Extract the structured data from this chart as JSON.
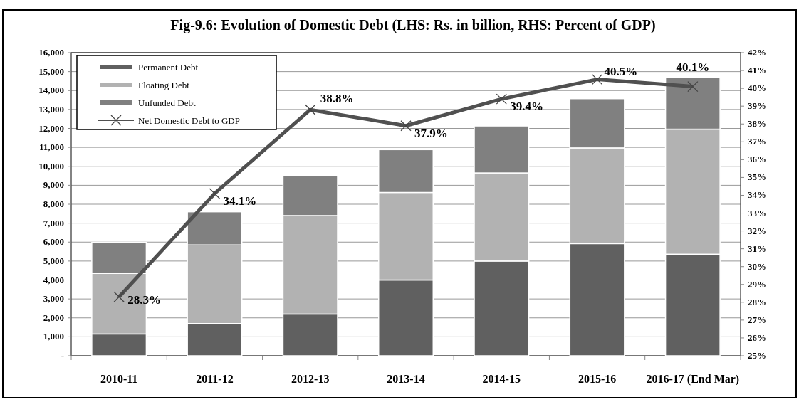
{
  "chart_data": {
    "type": "bar",
    "title": "Fig-9.6: Evolution of Domestic Debt (LHS: Rs. in billion, RHS: Percent of GDP)",
    "categories": [
      "2010-11",
      "2011-12",
      "2012-13",
      "2013-14",
      "2014-15",
      "2015-16",
      "2016-17 (End Mar)"
    ],
    "stacked": true,
    "series": [
      {
        "name": "Permanent Debt",
        "color": "#606060",
        "values": [
          1150,
          1700,
          2200,
          4000,
          5000,
          5920,
          5360
        ]
      },
      {
        "name": "Floating Debt",
        "color": "#b2b2b2",
        "values": [
          3200,
          4150,
          5200,
          4620,
          4650,
          5050,
          6600
        ]
      },
      {
        "name": "Unfunded Debt",
        "color": "#808080",
        "values": [
          1630,
          1750,
          2100,
          2260,
          2480,
          2600,
          2720
        ]
      },
      {
        "name": "Net Domestic Debt to GDP",
        "type": "line",
        "axis": "y2",
        "color": "#505050",
        "marker": "cross",
        "values": [
          28.3,
          34.1,
          38.8,
          37.9,
          39.4,
          40.5,
          40.1
        ],
        "value_labels": [
          "28.3%",
          "34.1%",
          "38.8%",
          "37.9%",
          "39.4%",
          "40.5%",
          "40.1%"
        ]
      }
    ],
    "ylim": [
      0,
      16000
    ],
    "yticks": [
      {
        "value": 0,
        "label": "-"
      },
      {
        "value": 1000,
        "label": "1,000"
      },
      {
        "value": 2000,
        "label": "2,000"
      },
      {
        "value": 3000,
        "label": "3,000"
      },
      {
        "value": 4000,
        "label": "4,000"
      },
      {
        "value": 5000,
        "label": "5,000"
      },
      {
        "value": 6000,
        "label": "6,000"
      },
      {
        "value": 7000,
        "label": "7,000"
      },
      {
        "value": 8000,
        "label": "8,000"
      },
      {
        "value": 9000,
        "label": "9,000"
      },
      {
        "value": 10000,
        "label": "10,000"
      },
      {
        "value": 11000,
        "label": "11,000"
      },
      {
        "value": 12000,
        "label": "12,000"
      },
      {
        "value": 13000,
        "label": "13,000"
      },
      {
        "value": 14000,
        "label": "14,000"
      },
      {
        "value": 15000,
        "label": "15,000"
      },
      {
        "value": 16000,
        "label": "16,000"
      }
    ],
    "y2lim": [
      25,
      42
    ],
    "y2ticks": [
      {
        "value": 25,
        "label": "25%"
      },
      {
        "value": 26,
        "label": "26%"
      },
      {
        "value": 27,
        "label": "27%"
      },
      {
        "value": 28,
        "label": "28%"
      },
      {
        "value": 29,
        "label": "29%"
      },
      {
        "value": 30,
        "label": "30%"
      },
      {
        "value": 31,
        "label": "31%"
      },
      {
        "value": 32,
        "label": "32%"
      },
      {
        "value": 33,
        "label": "33%"
      },
      {
        "value": 34,
        "label": "34%"
      },
      {
        "value": 35,
        "label": "35%"
      },
      {
        "value": 36,
        "label": "36%"
      },
      {
        "value": 37,
        "label": "37%"
      },
      {
        "value": 38,
        "label": "38%"
      },
      {
        "value": 39,
        "label": "39%"
      },
      {
        "value": 40,
        "label": "40%"
      },
      {
        "value": 41,
        "label": "41%"
      },
      {
        "value": 42,
        "label": "42%"
      }
    ],
    "grid": "y",
    "legend": "top left"
  }
}
